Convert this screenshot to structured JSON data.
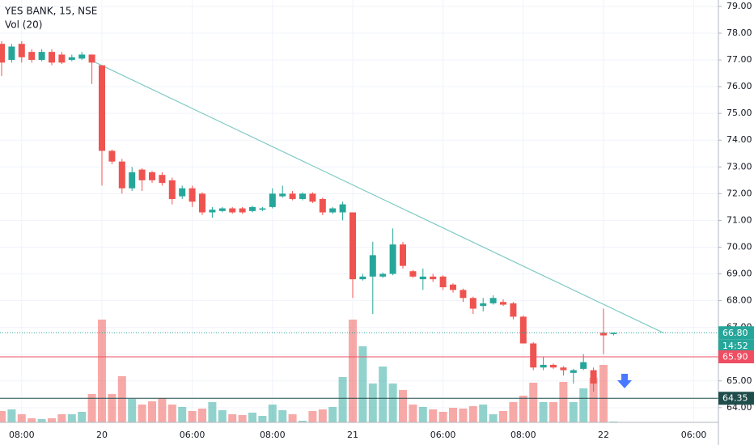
{
  "chart_data": {
    "type": "candlestick",
    "title": "YES BANK, 15, NSE",
    "categories": [
      null,
      null,
      "08:00",
      null,
      null,
      null,
      null,
      null,
      null,
      null,
      "20",
      null,
      null,
      null,
      null,
      null,
      null,
      null,
      null,
      "06:00",
      null,
      null,
      null,
      null,
      null,
      null,
      null,
      "08:00",
      null,
      null,
      null,
      null,
      null,
      null,
      null,
      "21",
      null,
      null,
      null,
      null,
      null,
      null,
      null,
      null,
      "06:00",
      null,
      null,
      null,
      null,
      null,
      null,
      null,
      "08:00",
      null,
      null,
      null,
      null,
      null,
      null,
      null,
      "22",
      null,
      null,
      null,
      null,
      null,
      null,
      null,
      null,
      "06:00"
    ],
    "open": [
      77.6,
      77.0,
      77.6,
      77.3,
      77.0,
      77.3,
      77.2,
      77.0,
      77.05,
      77.2,
      76.8,
      73.6,
      73.2,
      72.2,
      72.9,
      72.8,
      72.7,
      72.5,
      71.9,
      72.2,
      72.0,
      71.3,
      71.35,
      71.45,
      71.45,
      71.35,
      71.4,
      71.5,
      71.9,
      72.0,
      71.8,
      72.0,
      71.8,
      71.3,
      71.3,
      71.3,
      68.8,
      68.9,
      68.9,
      69.0,
      70.1,
      69.1,
      68.8,
      68.9,
      68.9,
      68.6,
      68.4,
      68.1,
      67.8,
      67.9,
      67.95,
      67.9,
      67.4,
      66.4,
      65.5,
      65.6,
      65.5,
      65.3,
      65.45,
      65.4,
      66.8,
      66.75,
      null,
      null,
      null,
      null,
      null,
      null,
      null,
      null
    ],
    "high": [
      77.7,
      77.6,
      77.7,
      77.4,
      77.4,
      77.4,
      77.3,
      77.2,
      77.3,
      77.2,
      76.8,
      73.65,
      73.3,
      73.0,
      72.95,
      72.85,
      72.8,
      72.6,
      72.3,
      72.3,
      72.05,
      71.5,
      71.5,
      71.5,
      71.5,
      71.55,
      71.5,
      72.2,
      72.3,
      72.1,
      72.05,
      72.05,
      71.85,
      71.5,
      71.7,
      71.3,
      69.0,
      70.2,
      69.05,
      70.7,
      70.2,
      69.15,
      69.2,
      69.0,
      68.95,
      68.65,
      68.45,
      68.15,
      68.1,
      68.2,
      68.05,
      67.95,
      67.45,
      66.45,
      65.9,
      65.65,
      65.55,
      65.45,
      66.0,
      65.5,
      67.7,
      66.8,
      null,
      null,
      null,
      null,
      null,
      null,
      null,
      null
    ],
    "low": [
      76.4,
      76.9,
      76.9,
      76.9,
      76.95,
      76.8,
      76.85,
      76.95,
      77.0,
      76.1,
      72.3,
      73.1,
      72.0,
      72.1,
      72.1,
      72.4,
      72.3,
      71.6,
      71.8,
      71.5,
      71.2,
      71.1,
      71.3,
      71.25,
      71.25,
      71.3,
      71.35,
      71.45,
      71.85,
      71.75,
      71.75,
      71.65,
      71.2,
      71.25,
      71.0,
      68.1,
      68.75,
      67.5,
      68.85,
      68.95,
      69.2,
      68.85,
      68.4,
      68.7,
      68.4,
      68.3,
      67.95,
      67.5,
      67.6,
      67.85,
      67.8,
      67.3,
      66.4,
      65.4,
      65.4,
      65.45,
      65.2,
      64.9,
      65.4,
      64.6,
      66.0,
      66.7,
      null,
      null,
      null,
      null,
      null,
      null,
      null,
      null
    ],
    "close": [
      76.9,
      77.5,
      77.1,
      77.0,
      77.3,
      76.9,
      76.9,
      77.1,
      77.2,
      76.9,
      73.6,
      73.2,
      72.2,
      72.8,
      72.5,
      72.5,
      72.4,
      71.8,
      72.2,
      71.7,
      71.3,
      71.4,
      71.45,
      71.3,
      71.3,
      71.5,
      71.45,
      72.0,
      72.0,
      71.8,
      72.0,
      71.7,
      71.3,
      71.45,
      71.6,
      68.8,
      68.9,
      69.7,
      69.0,
      70.1,
      69.3,
      68.9,
      68.9,
      68.8,
      68.5,
      68.4,
      68.1,
      67.7,
      67.9,
      68.1,
      67.85,
      67.4,
      66.4,
      65.5,
      65.6,
      65.5,
      65.4,
      65.4,
      65.7,
      64.9,
      66.7,
      66.8,
      null,
      null,
      null,
      null,
      null,
      null,
      null,
      null
    ],
    "up_color": "#26a69a",
    "down_color": "#ef5350",
    "ylim": [
      63.45,
      79.24
    ],
    "yticks": [
      {
        "value": 64,
        "label": "64.00"
      },
      {
        "value": 65,
        "label": "65.00"
      },
      {
        "value": 66,
        "label": "66.00"
      },
      {
        "value": 67,
        "label": "67.00"
      },
      {
        "value": 68,
        "label": "68.00"
      },
      {
        "value": 69,
        "label": "69.00"
      },
      {
        "value": 70,
        "label": "70.00"
      },
      {
        "value": 71,
        "label": "71.00"
      },
      {
        "value": 72,
        "label": "72.00"
      },
      {
        "value": 73,
        "label": "73.00"
      },
      {
        "value": 74,
        "label": "74.00"
      },
      {
        "value": 75,
        "label": "75.00"
      },
      {
        "value": 76,
        "label": "76.00"
      },
      {
        "value": 77,
        "label": "77.00"
      },
      {
        "value": 78,
        "label": "78.00"
      },
      {
        "value": 79,
        "label": "79.00"
      }
    ],
    "grid": true,
    "volume": {
      "name": "Vol (20)",
      "ylim": [
        0,
        127
      ],
      "values": [
        14,
        16,
        10,
        5,
        4,
        5,
        10,
        10,
        13,
        35,
        127,
        35,
        57,
        29,
        22,
        26,
        30,
        22,
        19,
        14,
        17,
        25,
        15,
        10,
        9,
        12,
        8,
        22,
        15,
        10,
        2,
        14,
        16,
        19,
        56,
        127,
        94,
        48,
        69,
        48,
        40,
        22,
        19,
        16,
        13,
        18,
        17,
        20,
        22,
        10,
        14,
        25,
        33,
        49,
        25,
        25,
        50,
        25,
        42,
        55,
        71,
        1,
        null,
        null,
        null,
        null,
        null,
        null,
        null,
        null
      ]
    },
    "trendline": {
      "x": [
        9,
        66
      ],
      "y": [
        76.97,
        66.79
      ],
      "color": "#80cbc4"
    },
    "levels": [
      {
        "value": 66.8,
        "label": "66.80",
        "color": "#26a69a",
        "style": "dotted"
      },
      {
        "value": 65.9,
        "label": "65.90",
        "color": "#ef4d62",
        "style": "solid"
      },
      {
        "value": 64.35,
        "label": "64.35",
        "color": "#1e4d4b",
        "style": "solid"
      }
    ],
    "countdown": "14:52"
  }
}
